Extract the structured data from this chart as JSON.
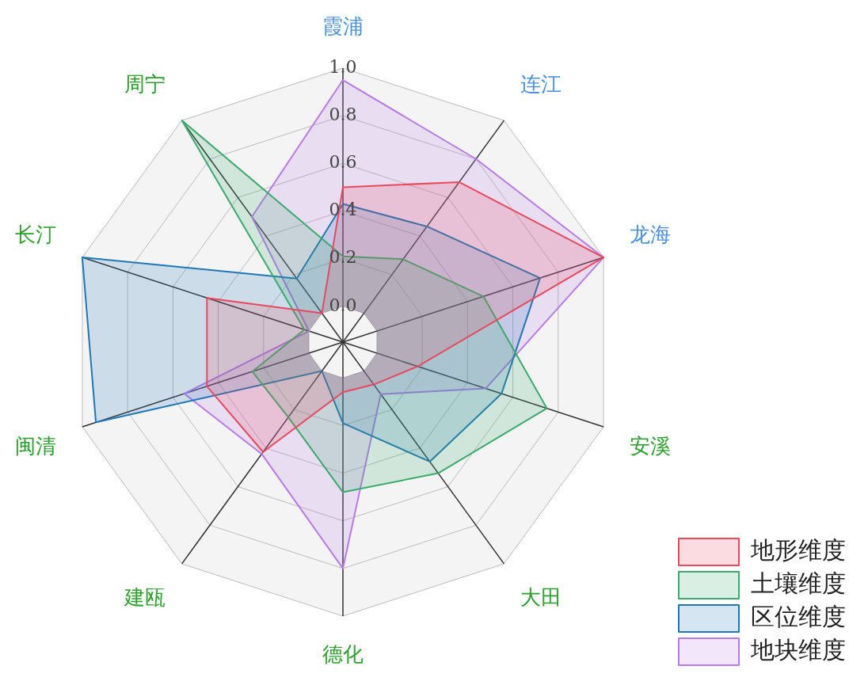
{
  "chart_data": {
    "type": "radar",
    "categories": [
      "霞浦",
      "连江",
      "龙海",
      "安溪",
      "大田",
      "德化",
      "建瓯",
      "闽清",
      "长汀",
      "周宁"
    ],
    "ylim": [
      -0.15,
      1.0
    ],
    "yticks": [
      {
        "value": 0,
        "label": "0.0"
      },
      0.2,
      0.4,
      0.6,
      0.8,
      {
        "value": 1,
        "label": "1.0"
      }
    ],
    "grid": true,
    "legend": "bottom right",
    "series": [
      {
        "name": "地形维度",
        "color": "#e8495f",
        "values": [
          0.5,
          0.68,
          1.0,
          0.18,
          0.07,
          0.06,
          0.42,
          0.45,
          0.45,
          0.0
        ]
      },
      {
        "name": "土壤维度",
        "color": "#3aaa6e",
        "values": [
          0.21,
          0.28,
          0.47,
          0.75,
          0.53,
          0.48,
          0.24,
          0.25,
          0.02,
          1.0
        ]
      },
      {
        "name": "区位维度",
        "color": "#1f77b4",
        "values": [
          0.43,
          0.45,
          0.72,
          0.55,
          0.47,
          0.19,
          0.0,
          0.94,
          1.0,
          0.18
        ]
      },
      {
        "name": "地块维度",
        "color": "#b87ae8",
        "values": [
          0.95,
          0.8,
          1.0,
          0.48,
          0.12,
          0.8,
          0.43,
          0.55,
          0.0,
          0.5
        ]
      }
    ]
  }
}
